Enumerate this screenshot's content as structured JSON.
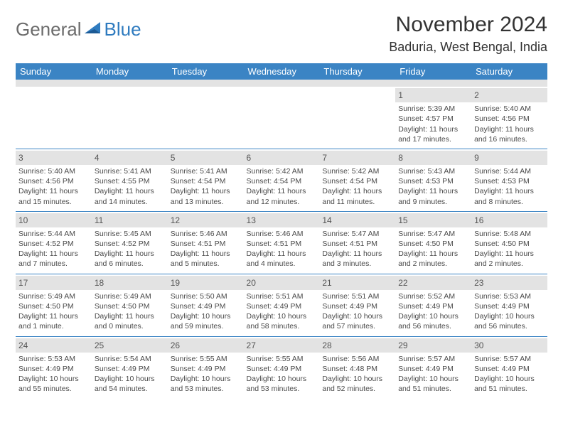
{
  "logo": {
    "general": "General",
    "blue": "Blue"
  },
  "title": {
    "month": "November 2024",
    "location": "Baduria, West Bengal, India"
  },
  "colors": {
    "header_bg": "#3b84c4",
    "header_text": "#ffffff",
    "spacer_bg": "#e3e3e3",
    "border": "#3b84c4",
    "text": "#4a4a4a",
    "logo_gray": "#6b6b6b",
    "logo_blue": "#2f7bbf"
  },
  "day_names": [
    "Sunday",
    "Monday",
    "Tuesday",
    "Wednesday",
    "Thursday",
    "Friday",
    "Saturday"
  ],
  "weeks": [
    [
      null,
      null,
      null,
      null,
      null,
      {
        "n": "1",
        "sr": "5:39 AM",
        "ss": "4:57 PM",
        "dl": "11 hours and 17 minutes."
      },
      {
        "n": "2",
        "sr": "5:40 AM",
        "ss": "4:56 PM",
        "dl": "11 hours and 16 minutes."
      }
    ],
    [
      {
        "n": "3",
        "sr": "5:40 AM",
        "ss": "4:56 PM",
        "dl": "11 hours and 15 minutes."
      },
      {
        "n": "4",
        "sr": "5:41 AM",
        "ss": "4:55 PM",
        "dl": "11 hours and 14 minutes."
      },
      {
        "n": "5",
        "sr": "5:41 AM",
        "ss": "4:54 PM",
        "dl": "11 hours and 13 minutes."
      },
      {
        "n": "6",
        "sr": "5:42 AM",
        "ss": "4:54 PM",
        "dl": "11 hours and 12 minutes."
      },
      {
        "n": "7",
        "sr": "5:42 AM",
        "ss": "4:54 PM",
        "dl": "11 hours and 11 minutes."
      },
      {
        "n": "8",
        "sr": "5:43 AM",
        "ss": "4:53 PM",
        "dl": "11 hours and 9 minutes."
      },
      {
        "n": "9",
        "sr": "5:44 AM",
        "ss": "4:53 PM",
        "dl": "11 hours and 8 minutes."
      }
    ],
    [
      {
        "n": "10",
        "sr": "5:44 AM",
        "ss": "4:52 PM",
        "dl": "11 hours and 7 minutes."
      },
      {
        "n": "11",
        "sr": "5:45 AM",
        "ss": "4:52 PM",
        "dl": "11 hours and 6 minutes."
      },
      {
        "n": "12",
        "sr": "5:46 AM",
        "ss": "4:51 PM",
        "dl": "11 hours and 5 minutes."
      },
      {
        "n": "13",
        "sr": "5:46 AM",
        "ss": "4:51 PM",
        "dl": "11 hours and 4 minutes."
      },
      {
        "n": "14",
        "sr": "5:47 AM",
        "ss": "4:51 PM",
        "dl": "11 hours and 3 minutes."
      },
      {
        "n": "15",
        "sr": "5:47 AM",
        "ss": "4:50 PM",
        "dl": "11 hours and 2 minutes."
      },
      {
        "n": "16",
        "sr": "5:48 AM",
        "ss": "4:50 PM",
        "dl": "11 hours and 2 minutes."
      }
    ],
    [
      {
        "n": "17",
        "sr": "5:49 AM",
        "ss": "4:50 PM",
        "dl": "11 hours and 1 minute."
      },
      {
        "n": "18",
        "sr": "5:49 AM",
        "ss": "4:50 PM",
        "dl": "11 hours and 0 minutes."
      },
      {
        "n": "19",
        "sr": "5:50 AM",
        "ss": "4:49 PM",
        "dl": "10 hours and 59 minutes."
      },
      {
        "n": "20",
        "sr": "5:51 AM",
        "ss": "4:49 PM",
        "dl": "10 hours and 58 minutes."
      },
      {
        "n": "21",
        "sr": "5:51 AM",
        "ss": "4:49 PM",
        "dl": "10 hours and 57 minutes."
      },
      {
        "n": "22",
        "sr": "5:52 AM",
        "ss": "4:49 PM",
        "dl": "10 hours and 56 minutes."
      },
      {
        "n": "23",
        "sr": "5:53 AM",
        "ss": "4:49 PM",
        "dl": "10 hours and 56 minutes."
      }
    ],
    [
      {
        "n": "24",
        "sr": "5:53 AM",
        "ss": "4:49 PM",
        "dl": "10 hours and 55 minutes."
      },
      {
        "n": "25",
        "sr": "5:54 AM",
        "ss": "4:49 PM",
        "dl": "10 hours and 54 minutes."
      },
      {
        "n": "26",
        "sr": "5:55 AM",
        "ss": "4:49 PM",
        "dl": "10 hours and 53 minutes."
      },
      {
        "n": "27",
        "sr": "5:55 AM",
        "ss": "4:49 PM",
        "dl": "10 hours and 53 minutes."
      },
      {
        "n": "28",
        "sr": "5:56 AM",
        "ss": "4:48 PM",
        "dl": "10 hours and 52 minutes."
      },
      {
        "n": "29",
        "sr": "5:57 AM",
        "ss": "4:49 PM",
        "dl": "10 hours and 51 minutes."
      },
      {
        "n": "30",
        "sr": "5:57 AM",
        "ss": "4:49 PM",
        "dl": "10 hours and 51 minutes."
      }
    ]
  ],
  "labels": {
    "sunrise": "Sunrise:",
    "sunset": "Sunset:",
    "daylight": "Daylight:"
  }
}
